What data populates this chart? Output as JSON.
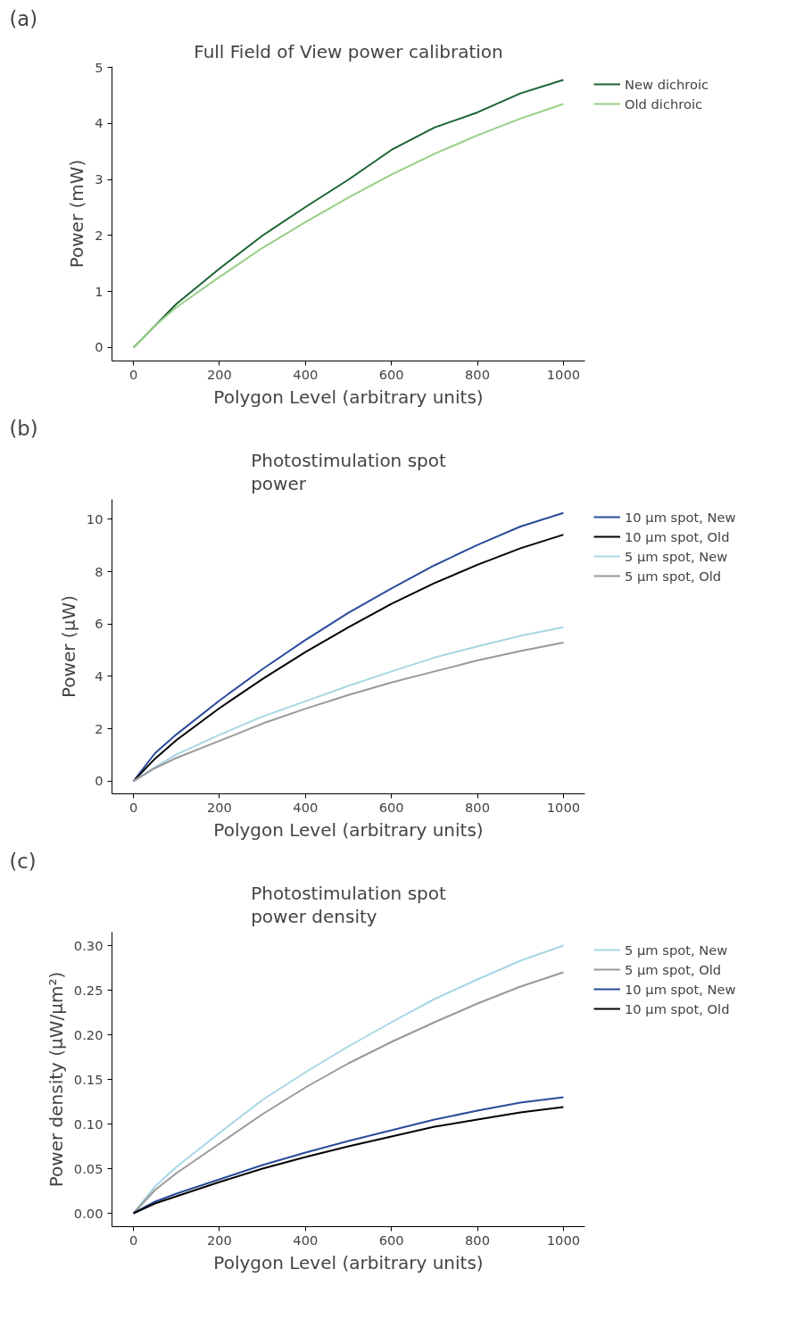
{
  "chart_data": [
    {
      "type": "line",
      "title": "Full Field of View power calibration",
      "xlabel": "Polygon Level (arbitrary units)",
      "ylabel": "Power (mW)",
      "annotations": [
        "(a)"
      ],
      "x": [
        0,
        50,
        100,
        200,
        300,
        400,
        500,
        600,
        700,
        800,
        900,
        1000
      ],
      "series": [
        {
          "name": "New dichroic",
          "color": "#1a6332",
          "values": [
            0,
            0.39,
            0.78,
            1.41,
            2.0,
            2.51,
            3.0,
            3.53,
            3.93,
            4.2,
            4.54,
            4.78
          ]
        },
        {
          "name": "Old dichroic",
          "color": "#98cf86",
          "values": [
            0,
            0.39,
            0.72,
            1.26,
            1.78,
            2.24,
            2.68,
            3.09,
            3.46,
            3.79,
            4.09,
            4.35
          ]
        }
      ],
      "xlim": [
        -50,
        1050
      ],
      "ylim": [
        -0.24,
        5.02
      ],
      "xticks": [
        0,
        200,
        400,
        600,
        800,
        1000
      ],
      "yticks": [
        0,
        1,
        2,
        3,
        4,
        5
      ],
      "grid": false,
      "legend": "top right"
    },
    {
      "type": "line",
      "title": "Photostimulation spot\npower",
      "xlabel": "Polygon Level (arbitrary units)",
      "ylabel": "Power (μW)",
      "annotations": [
        "(b)"
      ],
      "x": [
        0,
        50,
        100,
        200,
        300,
        400,
        500,
        600,
        700,
        800,
        900,
        1000
      ],
      "series": [
        {
          "name": "10 µm spot, New",
          "color": "#2a4b9b",
          "values": [
            0,
            1.07,
            1.79,
            3.08,
            4.28,
            5.39,
            6.43,
            7.36,
            8.24,
            9.02,
            9.72,
            10.24
          ]
        },
        {
          "name": "10 µm spot, Old",
          "color": "#000000",
          "values": [
            0,
            0.86,
            1.57,
            2.79,
            3.9,
            4.93,
            5.88,
            6.77,
            7.56,
            8.26,
            8.89,
            9.41
          ]
        },
        {
          "name": "5 µm spot, New",
          "color": "#a6d6e5",
          "values": [
            0,
            0.54,
            1.02,
            1.77,
            2.47,
            3.05,
            3.64,
            4.19,
            4.72,
            5.15,
            5.55,
            5.88
          ]
        },
        {
          "name": "5 µm spot, Old",
          "color": "#999999",
          "values": [
            0,
            0.5,
            0.89,
            1.54,
            2.2,
            2.77,
            3.29,
            3.77,
            4.19,
            4.61,
            4.97,
            5.29
          ]
        }
      ],
      "xlim": [
        -50,
        1050
      ],
      "ylim": [
        -0.48,
        10.76
      ],
      "xticks": [
        0,
        200,
        400,
        600,
        800,
        1000
      ],
      "yticks": [
        0,
        2,
        4,
        6,
        8,
        10
      ],
      "grid": false,
      "legend": "top right"
    },
    {
      "type": "line",
      "title": "Photostimulation spot\npower density",
      "xlabel": "Polygon Level (arbitrary units)",
      "ylabel": "Power density (μW/μm²)",
      "annotations": [
        "(c)"
      ],
      "x": [
        0,
        50,
        100,
        200,
        300,
        400,
        500,
        600,
        700,
        800,
        900,
        1000
      ],
      "series": [
        {
          "name": "5 µm spot, New",
          "color": "#a6d6e5",
          "values": [
            0,
            0.03,
            0.052,
            0.09,
            0.127,
            0.158,
            0.187,
            0.214,
            0.24,
            0.262,
            0.283,
            0.3
          ]
        },
        {
          "name": "5 µm spot, Old",
          "color": "#999999",
          "values": [
            0,
            0.026,
            0.045,
            0.078,
            0.111,
            0.141,
            0.168,
            0.192,
            0.214,
            0.235,
            0.254,
            0.27
          ]
        },
        {
          "name": "10 µm spot, New",
          "color": "#2a4b9b",
          "values": [
            0,
            0.013,
            0.022,
            0.038,
            0.054,
            0.068,
            0.081,
            0.093,
            0.105,
            0.115,
            0.124,
            0.13
          ]
        },
        {
          "name": "10 µm spot, Old",
          "color": "#000000",
          "values": [
            0,
            0.011,
            0.019,
            0.035,
            0.05,
            0.063,
            0.075,
            0.086,
            0.097,
            0.105,
            0.113,
            0.119
          ]
        }
      ],
      "xlim": [
        -50,
        1050
      ],
      "ylim": [
        -0.015,
        0.315
      ],
      "xticks": [
        0,
        200,
        400,
        600,
        800,
        1000
      ],
      "yticks": [
        {
          "value": 0,
          "label": "0.00"
        },
        {
          "value": 0.05,
          "label": "0.05"
        },
        {
          "value": 0.1,
          "label": "0.10"
        },
        {
          "value": 0.15,
          "label": "0.15"
        },
        {
          "value": 0.2,
          "label": "0.20"
        },
        {
          "value": 0.25,
          "label": "0.25"
        },
        {
          "value": 0.3,
          "label": "0.30"
        }
      ],
      "grid": false,
      "legend": "top right"
    }
  ]
}
